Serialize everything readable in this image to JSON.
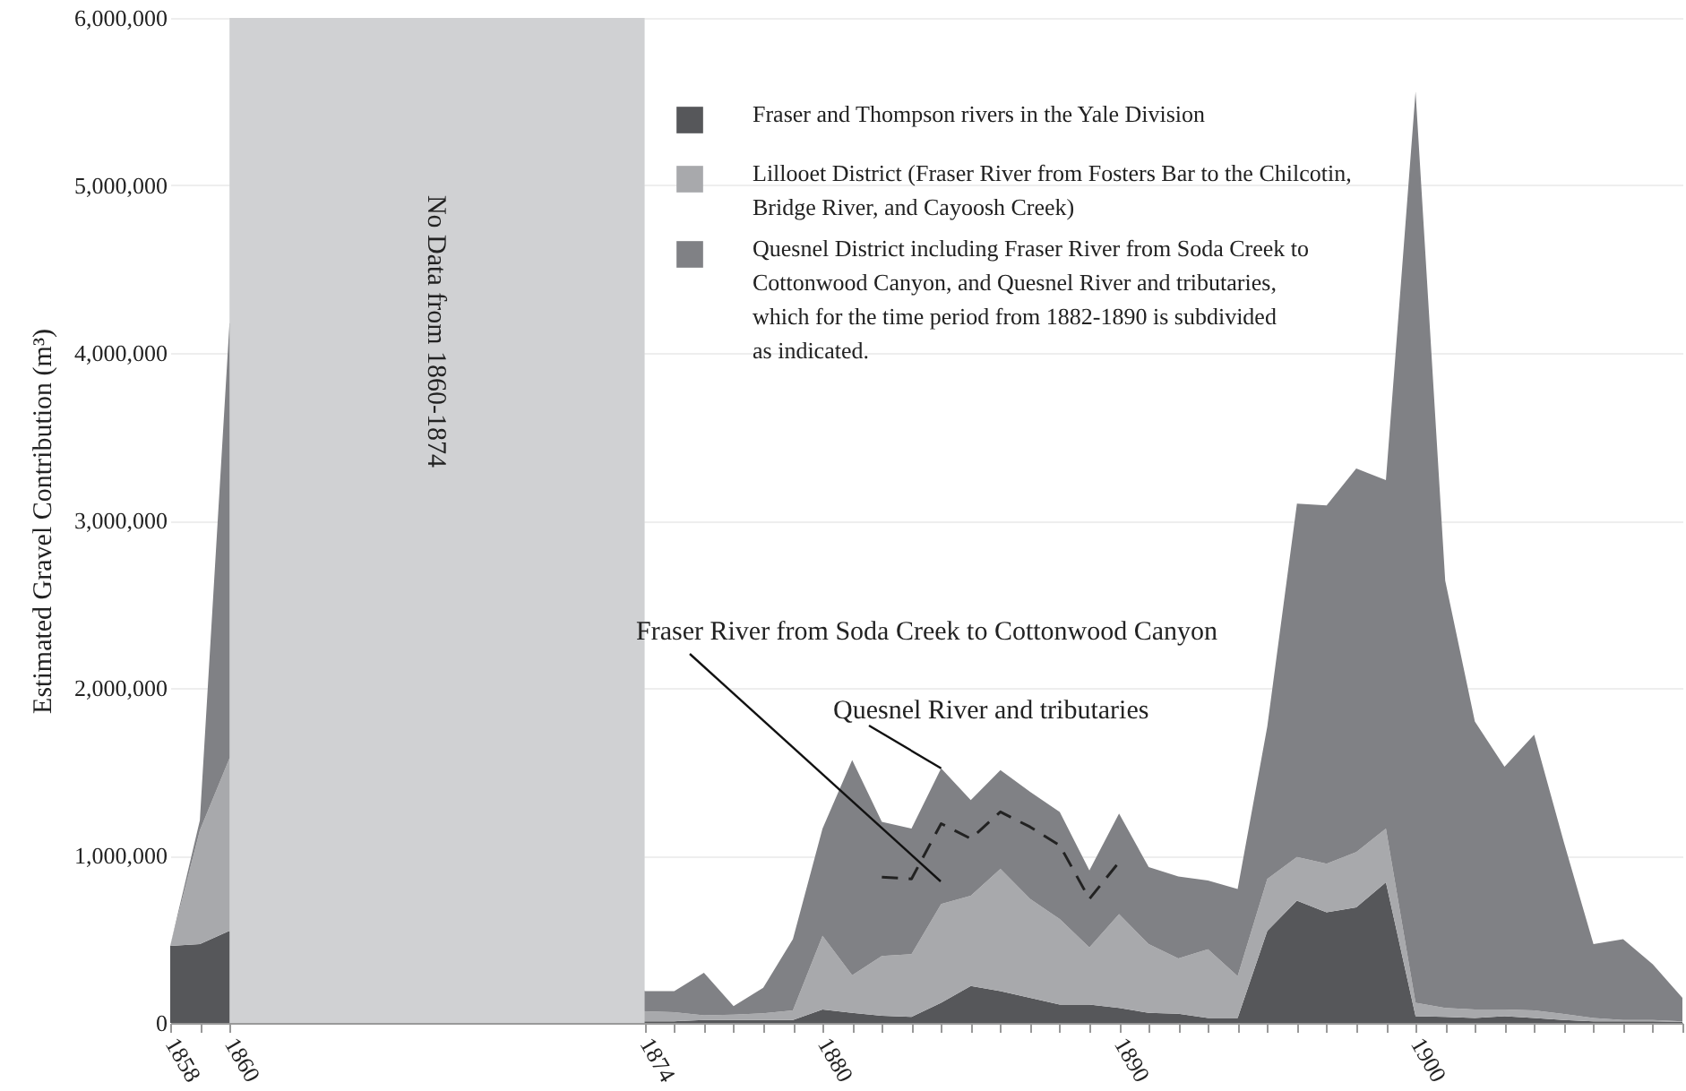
{
  "chart_data": {
    "type": "area",
    "stacked": true,
    "ylabel": "Estimated Gravel Contribution (m³)",
    "x": [
      1858,
      1859,
      1860,
      1874,
      1875,
      1876,
      1877,
      1878,
      1879,
      1880,
      1881,
      1882,
      1883,
      1884,
      1885,
      1886,
      1887,
      1888,
      1889,
      1890,
      1891,
      1892,
      1893,
      1894,
      1895,
      1896,
      1897,
      1898,
      1899,
      1900,
      1901,
      1902,
      1903,
      1904,
      1905,
      1906,
      1907,
      1908,
      1909
    ],
    "series": [
      {
        "name": "Fraser and Thompson rivers in the Yale Division",
        "color": "#56575a",
        "values": [
          460000,
          470000,
          550000,
          10000,
          10000,
          18000,
          18000,
          18000,
          18000,
          80000,
          60000,
          43000,
          36000,
          120000,
          220000,
          190000,
          150000,
          110000,
          110000,
          90000,
          60000,
          55000,
          30000,
          30000,
          550000,
          730000,
          660000,
          690000,
          840000,
          40000,
          36000,
          30000,
          40000,
          30000,
          18000,
          10000,
          10000,
          10000,
          7000
        ]
      },
      {
        "name": "Lillooet District (Fraser River from Fosters Bar to the Chilcotin,\nBridge River, and Cayoosh Creek)",
        "color": "#a8a9ac",
        "values": [
          0,
          680000,
          1030000,
          60000,
          54000,
          28000,
          32000,
          39000,
          57000,
          440000,
          225000,
          357000,
          374000,
          590000,
          540000,
          730000,
          590000,
          510000,
          340000,
          560000,
          410000,
          330000,
          410000,
          250000,
          310000,
          260000,
          290000,
          330000,
          320000,
          80000,
          54000,
          50000,
          40000,
          45000,
          35000,
          20000,
          8000,
          8000,
          3000
        ]
      },
      {
        "name": "Quesnel District including Fraser River from Soda Creek to\nCottonwood Canyon, and Quesnel River and tributaries,\n which for the time period from 1882-1890 is subdivided\n as indicated.",
        "color": "#808185",
        "values": [
          0,
          60000,
          2600000,
          120000,
          126000,
          254000,
          50000,
          153000,
          425000,
          640000,
          1285000,
          800000,
          750000,
          810000,
          570000,
          590000,
          640000,
          640000,
          460000,
          600000,
          460000,
          490000,
          410000,
          520000,
          910000,
          2110000,
          2140000,
          2290000,
          2080000,
          5440000,
          2550000,
          1720000,
          1450000,
          1645000,
          1027000,
          440000,
          482000,
          332000,
          140000
        ]
      },
      {
        "type": "line",
        "line_style": "dashed",
        "color": "#222222",
        "x": [
          1882,
          1883,
          1884,
          1885,
          1886,
          1887,
          1888,
          1889,
          1890
        ],
        "values": [
          870000,
          860000,
          1190000,
          1100000,
          1260000,
          1170000,
          1060000,
          740000,
          960000
        ]
      }
    ],
    "xlim": [
      1858,
      1909
    ],
    "xticks": [
      1858,
      {
        "value": 1859,
        "label": null
      },
      1860,
      1874,
      {
        "value": 1875,
        "label": null
      },
      {
        "value": 1876,
        "label": null
      },
      {
        "value": 1877,
        "label": null
      },
      {
        "value": 1878,
        "label": null
      },
      {
        "value": 1879,
        "label": null
      },
      1880,
      {
        "value": 1881,
        "label": null
      },
      {
        "value": 1882,
        "label": null
      },
      {
        "value": 1883,
        "label": null
      },
      {
        "value": 1884,
        "label": null
      },
      {
        "value": 1885,
        "label": null
      },
      {
        "value": 1886,
        "label": null
      },
      {
        "value": 1887,
        "label": null
      },
      {
        "value": 1888,
        "label": null
      },
      {
        "value": 1889,
        "label": null
      },
      1890,
      {
        "value": 1891,
        "label": null
      },
      {
        "value": 1892,
        "label": null
      },
      {
        "value": 1893,
        "label": null
      },
      {
        "value": 1894,
        "label": null
      },
      {
        "value": 1895,
        "label": null
      },
      {
        "value": 1896,
        "label": null
      },
      {
        "value": 1897,
        "label": null
      },
      {
        "value": 1898,
        "label": null
      },
      {
        "value": 1899,
        "label": null
      },
      1900,
      {
        "value": 1901,
        "label": null
      },
      {
        "value": 1902,
        "label": null
      },
      {
        "value": 1903,
        "label": null
      },
      {
        "value": 1904,
        "label": null
      },
      {
        "value": 1905,
        "label": null
      },
      {
        "value": 1906,
        "label": null
      },
      {
        "value": 1907,
        "label": null
      },
      {
        "value": 1908,
        "label": null
      },
      {
        "value": 1909,
        "label": null
      }
    ],
    "ylim": [
      0,
      6000000
    ],
    "yticks": [
      0,
      {
        "value": 1000000,
        "label": "1,000,000"
      },
      {
        "value": 2000000,
        "label": "2,000,000"
      },
      {
        "value": 3000000,
        "label": "3,000,000"
      },
      {
        "value": 4000000,
        "label": "4,000,000"
      },
      {
        "value": 5000000,
        "label": "5,000,000"
      },
      {
        "value": 6000000,
        "label": "6,000,000"
      }
    ],
    "grid": "y",
    "legend": "top",
    "bands": [
      {
        "axis": "x",
        "from": 1860,
        "to": 1874,
        "label": "No Data from 1860-1874",
        "color": "#d0d1d3"
      }
    ],
    "annotations": [
      "Fraser River from Soda Creek to Cottonwood Canyon",
      {
        "text": "Quesnel River and tributaries",
        "x": 1884,
        "y": 1520000
      }
    ]
  }
}
